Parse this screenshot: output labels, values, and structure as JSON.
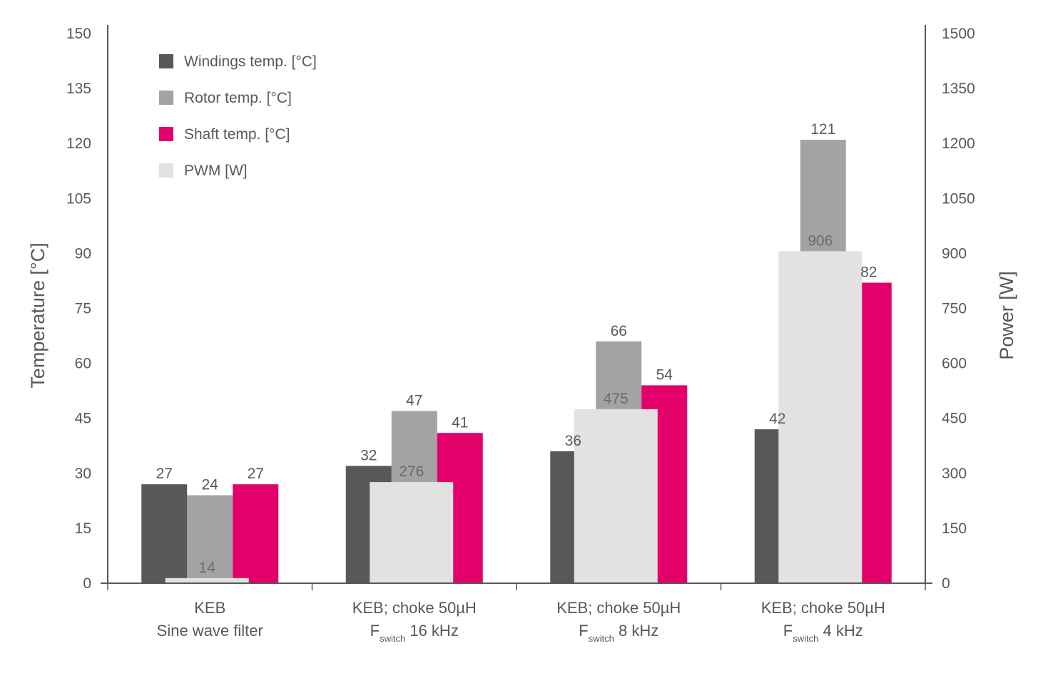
{
  "chart_data": {
    "type": "bar",
    "categories": [
      {
        "line1": "KEB",
        "line2_text": "Sine wave filter",
        "line2_sub": "",
        "line2_suffix": ""
      },
      {
        "line1": "KEB; choke 50µH",
        "line2_text": "F",
        "line2_sub": "switch",
        "line2_suffix": " 16 kHz"
      },
      {
        "line1": "KEB; choke 50µH",
        "line2_text": "F",
        "line2_sub": "switch",
        "line2_suffix": " 8 kHz"
      },
      {
        "line1": "KEB; choke 50µH",
        "line2_text": "F",
        "line2_sub": "switch",
        "line2_suffix": " 4 kHz"
      }
    ],
    "series": [
      {
        "name": "Windings temp. [°C]",
        "axis": "left",
        "color": "#58585a",
        "values": [
          27,
          32,
          36,
          42
        ]
      },
      {
        "name": "Rotor temp. [°C]",
        "axis": "left",
        "color": "#a3a3a3",
        "values": [
          24,
          47,
          66,
          121
        ]
      },
      {
        "name": "Shaft temp. [°C]",
        "axis": "left",
        "color": "#e3006b",
        "values": [
          27,
          41,
          54,
          82
        ]
      },
      {
        "name": "PWM [W]",
        "axis": "right",
        "color": "#e2e2e2",
        "values": [
          14,
          276,
          475,
          906
        ]
      }
    ],
    "y_left": {
      "label": "Temperature [°C]",
      "min": 0,
      "max": 150,
      "ticks": [
        0,
        15,
        30,
        45,
        60,
        75,
        90,
        105,
        120,
        135,
        150
      ]
    },
    "y_right": {
      "label": "Power [W]",
      "min": 0,
      "max": 1500,
      "ticks": [
        0,
        150,
        300,
        450,
        600,
        750,
        900,
        1050,
        1200,
        1350,
        1500
      ]
    },
    "grid": false,
    "legend_position": "top-left"
  }
}
